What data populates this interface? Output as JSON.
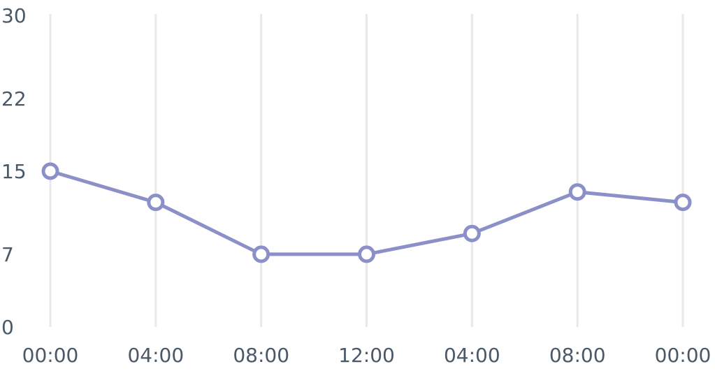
{
  "chart_data": {
    "type": "line",
    "categories": [
      "00:00",
      "04:00",
      "08:00",
      "12:00",
      "04:00",
      "08:00",
      "00:00"
    ],
    "series": [
      {
        "values": [
          15,
          12,
          7,
          7,
          9,
          13,
          12
        ],
        "color": "#8c90c8"
      }
    ],
    "y_ticks": [
      "0",
      "7",
      "15",
      "22",
      "30"
    ],
    "ylim": [
      0,
      30
    ],
    "grid": {
      "vertical": true,
      "horizontal": false,
      "color": "#e9e9ec"
    },
    "marker": "hollow-circle",
    "text_color": "#4a5968"
  }
}
